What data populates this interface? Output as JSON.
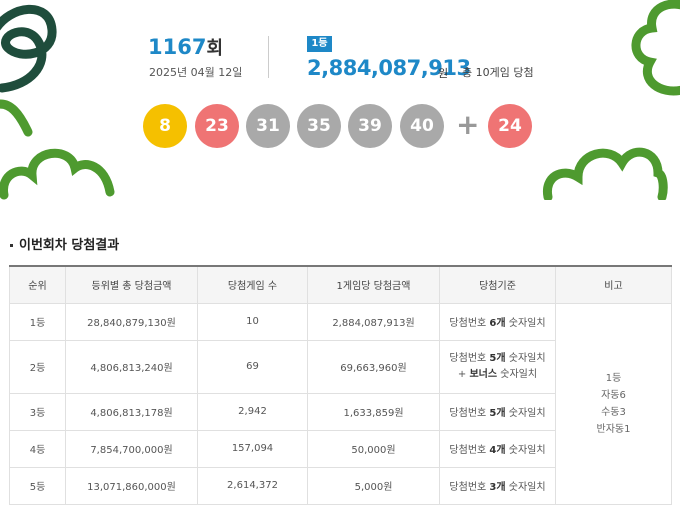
{
  "draw": {
    "number": "1167",
    "suffix": "회",
    "date": "2025년 04월 12일"
  },
  "first_prize": {
    "rank": "1등",
    "amount": "2,884,087,913",
    "unit": "원",
    "total_games": "총 10게임 당첨"
  },
  "balls": [
    {
      "num": "8",
      "color": "#f5c000"
    },
    {
      "num": "23",
      "color": "#ef7474"
    },
    {
      "num": "31",
      "color": "#a9a9a9"
    },
    {
      "num": "35",
      "color": "#a9a9a9"
    },
    {
      "num": "39",
      "color": "#a9a9a9"
    },
    {
      "num": "40",
      "color": "#a9a9a9"
    }
  ],
  "plus": "+",
  "bonus": {
    "num": "24",
    "color": "#ef7474"
  },
  "section_title": "이번회차 당첨결과",
  "table": {
    "headers": [
      "순위",
      "등위별 총 당첨금액",
      "당첨게임 수",
      "1게임당 당첨금액",
      "당첨기준",
      "비고"
    ],
    "rows": [
      {
        "rank": "1등",
        "total": "28,840,879,130원",
        "games": "10",
        "per_game": "2,884,087,913원",
        "criteria_pre": "당첨번호 ",
        "criteria_bold": "6개",
        "criteria_post": " 숫자일치",
        "criteria_line2_bold": "",
        "criteria_line2": ""
      },
      {
        "rank": "2등",
        "total": "4,806,813,240원",
        "games": "69",
        "per_game": "69,663,960원",
        "criteria_pre": "당첨번호 ",
        "criteria_bold": "5개",
        "criteria_post": " 숫자일치",
        "criteria_line2_pre": "+ ",
        "criteria_line2_bold": "보너스",
        "criteria_line2": " 숫자일치"
      },
      {
        "rank": "3등",
        "total": "4,806,813,178원",
        "games": "2,942",
        "per_game": "1,633,859원",
        "criteria_pre": "당첨번호 ",
        "criteria_bold": "5개",
        "criteria_post": " 숫자일치"
      },
      {
        "rank": "4등",
        "total": "7,854,700,000원",
        "games": "157,094",
        "per_game": "50,000원",
        "criteria_pre": "당첨번호 ",
        "criteria_bold": "4개",
        "criteria_post": " 숫자일치"
      },
      {
        "rank": "5등",
        "total": "13,071,860,000원",
        "games": "2,614,372",
        "per_game": "5,000원",
        "criteria_pre": "당첨번호 ",
        "criteria_bold": "3개",
        "criteria_post": " 숫자일치"
      }
    ],
    "remark": [
      "1등",
      "자동6",
      "수동3",
      "반자동1"
    ]
  }
}
